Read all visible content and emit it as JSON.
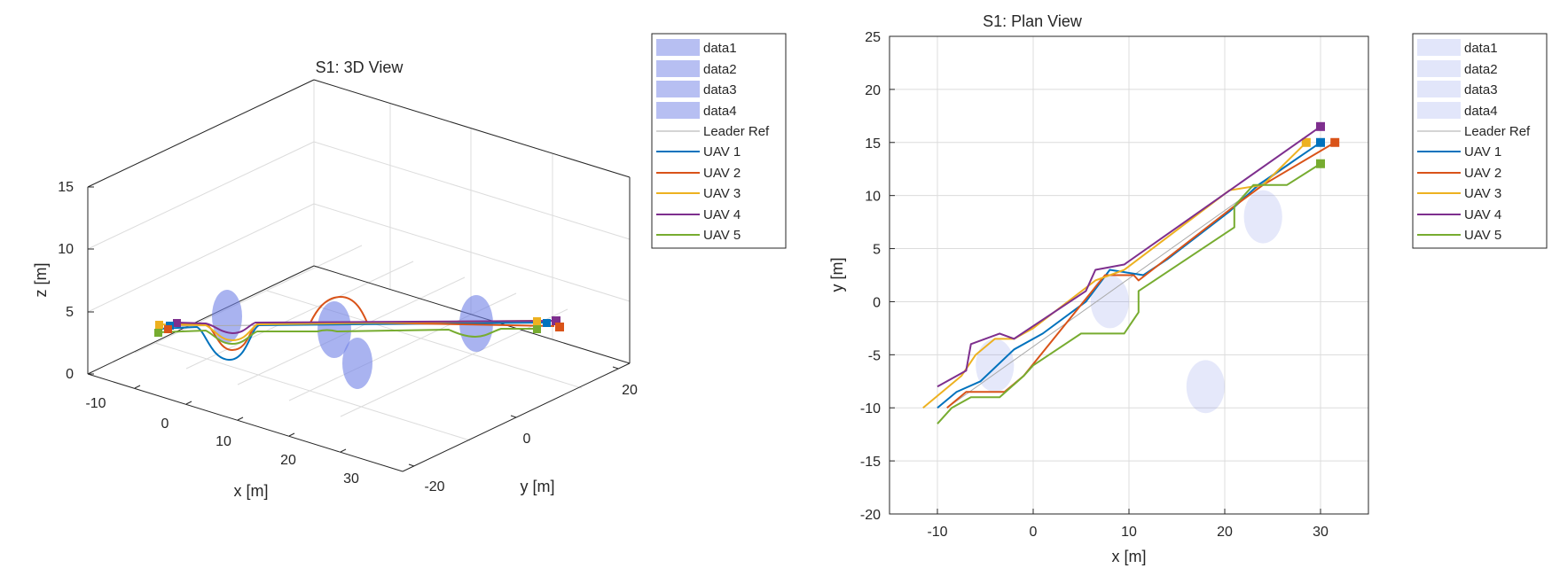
{
  "chart_data": [
    {
      "type": "line",
      "view": "3d",
      "title": "S1: 3D View",
      "xlabel": "x [m]",
      "ylabel": "y [m]",
      "zlabel": "z [m]",
      "xlim": [
        -15,
        35
      ],
      "ylim": [
        -20,
        25
      ],
      "zlim": [
        0,
        15
      ],
      "xticks": [
        "-10",
        "0",
        "10",
        "20",
        "30"
      ],
      "yticks": [
        "-20",
        "0",
        "20"
      ],
      "zticks": [
        "0",
        "5",
        "10",
        "15"
      ],
      "grid": true,
      "legend_position": "outside-right",
      "legend": [
        "data1",
        "data2",
        "data3",
        "data4",
        "Leader Ref",
        "UAV 1",
        "UAV 2",
        "UAV 3",
        "UAV 4",
        "UAV 5"
      ],
      "obstacles": [
        {
          "name": "data1",
          "x": -4,
          "y": -6,
          "z": 5
        },
        {
          "name": "data2",
          "x": 8,
          "y": 0,
          "z": 3
        },
        {
          "name": "data3",
          "x": 24,
          "y": 8,
          "z": 4
        },
        {
          "name": "data4",
          "x": 18,
          "y": -8,
          "z": 0.5
        }
      ],
      "series": [
        {
          "name": "UAV 1",
          "color": "#0072BD",
          "z_min": 1
        },
        {
          "name": "UAV 2",
          "color": "#D95319",
          "z_max": 6.5
        },
        {
          "name": "UAV 3",
          "color": "#EDB120"
        },
        {
          "name": "UAV 4",
          "color": "#7E2F8E"
        },
        {
          "name": "UAV 5",
          "color": "#77AC30"
        }
      ]
    },
    {
      "type": "line",
      "view": "plan",
      "title": "S1: Plan View",
      "xlabel": "x [m]",
      "ylabel": "y [m]",
      "xlim": [
        -15,
        35
      ],
      "ylim": [
        -20,
        25
      ],
      "xticks": [
        "-10",
        "0",
        "10",
        "20",
        "30"
      ],
      "yticks": [
        "-20",
        "-15",
        "-10",
        "-5",
        "0",
        "5",
        "10",
        "15",
        "20",
        "25"
      ],
      "grid": true,
      "legend_position": "outside-right",
      "legend": [
        "data1",
        "data2",
        "data3",
        "data4",
        "Leader Ref",
        "UAV 1",
        "UAV 2",
        "UAV 3",
        "UAV 4",
        "UAV 5"
      ],
      "obstacles": [
        {
          "name": "data1",
          "cx": -4,
          "cy": -6,
          "r": 2
        },
        {
          "name": "data2",
          "cx": 8,
          "cy": 0,
          "r": 2
        },
        {
          "name": "data3",
          "cx": 24,
          "cy": 8,
          "r": 2
        },
        {
          "name": "data4",
          "cx": 18,
          "cy": -8,
          "r": 2
        }
      ],
      "leader_ref": {
        "x": [
          -9,
          30
        ],
        "y": [
          -10,
          15
        ]
      },
      "series": [
        {
          "name": "UAV 1",
          "color": "#0072BD",
          "x": [
            -10,
            -8,
            -5.5,
            -2,
            1,
            5.5,
            8,
            11.5,
            14,
            20.5,
            23.5,
            30
          ],
          "y": [
            -10,
            -8.5,
            -7.5,
            -4.5,
            -3,
            0,
            3,
            2.5,
            4,
            8.5,
            11,
            15
          ]
        },
        {
          "name": "UAV 2",
          "color": "#D95319",
          "x": [
            -9,
            -7,
            -6,
            -3,
            -1,
            7.5,
            10.5,
            11,
            21,
            24,
            31.5
          ],
          "y": [
            -10,
            -8.5,
            -8.5,
            -8.5,
            -7,
            2.5,
            2.5,
            2,
            9,
            11,
            15
          ]
        },
        {
          "name": "UAV 3",
          "color": "#EDB120",
          "x": [
            -11.5,
            -7.5,
            -6,
            -4,
            -2,
            0,
            6.5,
            9.5,
            20.5,
            24,
            28.5
          ],
          "y": [
            -10,
            -7,
            -5,
            -3.5,
            -3.5,
            -2.5,
            2,
            3,
            10.5,
            11,
            15
          ]
        },
        {
          "name": "UAV 4",
          "color": "#7E2F8E",
          "x": [
            -10,
            -7,
            -6.5,
            -3.5,
            -2,
            5.5,
            6.5,
            9.5,
            30
          ],
          "y": [
            -8,
            -6.5,
            -4,
            -3,
            -3.5,
            1,
            3,
            3.5,
            16.5
          ]
        },
        {
          "name": "UAV 5",
          "color": "#77AC30",
          "x": [
            -10,
            -8.5,
            -6.5,
            -3.5,
            -1,
            0,
            5,
            9.5,
            11,
            11,
            21,
            21,
            23,
            25.5,
            26.5,
            30
          ],
          "y": [
            -11.5,
            -10,
            -9,
            -9,
            -7,
            -6,
            -3,
            -3,
            -1,
            1,
            7,
            9,
            11,
            11,
            11,
            13
          ]
        }
      ]
    }
  ]
}
